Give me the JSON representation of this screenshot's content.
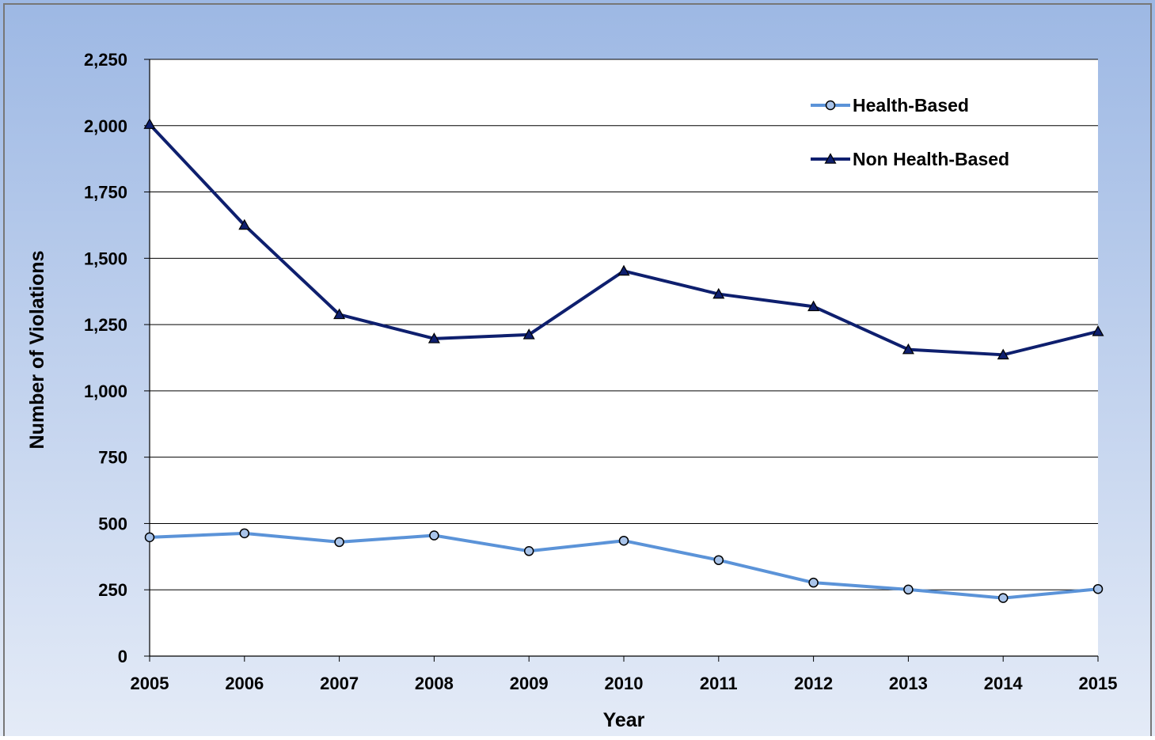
{
  "chart_data": {
    "type": "line",
    "title": "",
    "xlabel": "Year",
    "ylabel": "Number of Violations",
    "x": [
      2005,
      2006,
      2007,
      2008,
      2009,
      2010,
      2011,
      2012,
      2013,
      2014,
      2015
    ],
    "x_tick_labels": [
      "2005",
      "2006",
      "2007",
      "2008",
      "2009",
      "2010",
      "2011",
      "2012",
      "2013",
      "2014",
      "2015"
    ],
    "ylim": [
      0,
      2250
    ],
    "y_ticks": [
      0,
      250,
      500,
      750,
      1000,
      1250,
      1500,
      1750,
      2000,
      2250
    ],
    "y_tick_labels": [
      "0",
      "250",
      "500",
      "750",
      "1,000",
      "1,250",
      "1,500",
      "1,750",
      "2,000",
      "2,250"
    ],
    "grid": true,
    "legend_position": "top-right",
    "series": [
      {
        "name": "Health-Based",
        "color": "#5b93d8",
        "marker": "circle",
        "values": [
          448,
          463,
          430,
          455,
          396,
          435,
          362,
          277,
          251,
          219,
          253
        ]
      },
      {
        "name": "Non Health-Based",
        "color": "#0e1f6e",
        "marker": "triangle",
        "values": [
          2005,
          1625,
          1288,
          1197,
          1212,
          1452,
          1365,
          1318,
          1156,
          1136,
          1224
        ]
      }
    ]
  }
}
